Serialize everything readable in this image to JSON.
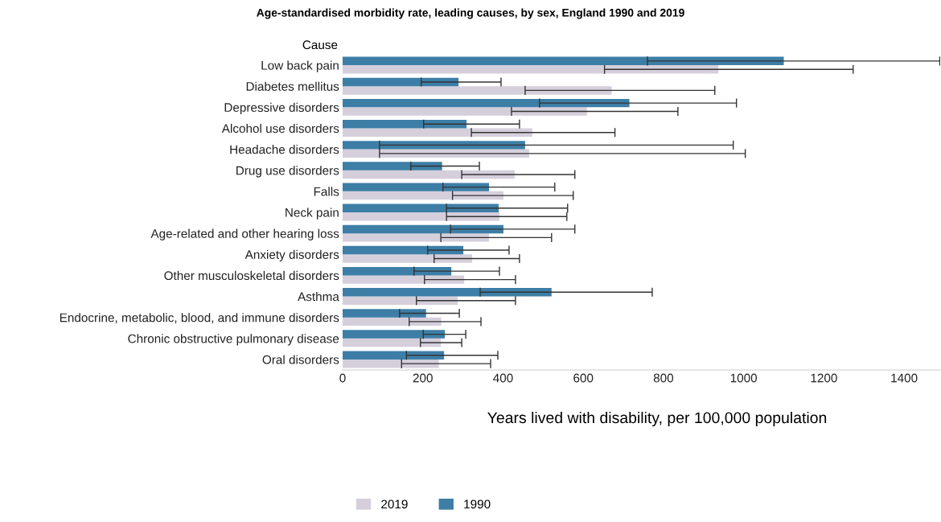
{
  "chart_data": {
    "type": "bar",
    "orientation": "horizontal",
    "title": "Age-standardised morbidity rate, leading causes, by sex, England 1990 and 2019",
    "ylabel": "Cause",
    "xlabel": "Years lived with disability, per 100,000 population",
    "categories": [
      "Low back pain",
      "Diabetes mellitus",
      "Depressive disorders",
      "Alcohol use disorders",
      "Headache disorders",
      "Drug use disorders",
      "Falls",
      "Neck pain",
      "Age-related and other hearing loss",
      "Anxiety disorders",
      "Other musculoskeletal disorders",
      "Asthma",
      "Endocrine, metabolic, blood, and immune disorders",
      "Chronic obstructive pulmonary disease",
      "Oral disorders"
    ],
    "series": [
      {
        "name": "2019",
        "color": "#d5cfdc",
        "values": [
          937,
          671,
          609,
          473,
          465,
          429,
          401,
          391,
          365,
          323,
          303,
          287,
          246,
          245,
          240
        ],
        "errors": [
          [
            653,
            1273
          ],
          [
            455,
            928
          ],
          [
            421,
            836
          ],
          [
            321,
            679
          ],
          [
            92,
            1004
          ],
          [
            297,
            579
          ],
          [
            274,
            575
          ],
          [
            259,
            559
          ],
          [
            245,
            521
          ],
          [
            228,
            441
          ],
          [
            204,
            431
          ],
          [
            184,
            431
          ],
          [
            166,
            345
          ],
          [
            194,
            297
          ],
          [
            147,
            369
          ]
        ]
      },
      {
        "name": "1990",
        "color": "#3d7ea6",
        "values": [
          1100,
          289,
          715,
          309,
          455,
          248,
          365,
          389,
          401,
          301,
          271,
          521,
          208,
          255,
          253
        ],
        "errors": [
          [
            760,
            1489
          ],
          [
            196,
            395
          ],
          [
            491,
            982
          ],
          [
            202,
            441
          ],
          [
            92,
            974
          ],
          [
            170,
            341
          ],
          [
            250,
            529
          ],
          [
            259,
            561
          ],
          [
            269,
            579
          ],
          [
            212,
            415
          ],
          [
            178,
            391
          ],
          [
            343,
            772
          ],
          [
            142,
            291
          ],
          [
            201,
            307
          ],
          [
            159,
            387
          ]
        ]
      }
    ],
    "xlim": [
      0,
      1490
    ],
    "xticks": [
      0,
      200,
      400,
      600,
      800,
      1000,
      1200,
      1400
    ],
    "grid": false,
    "legend": "bottom"
  }
}
